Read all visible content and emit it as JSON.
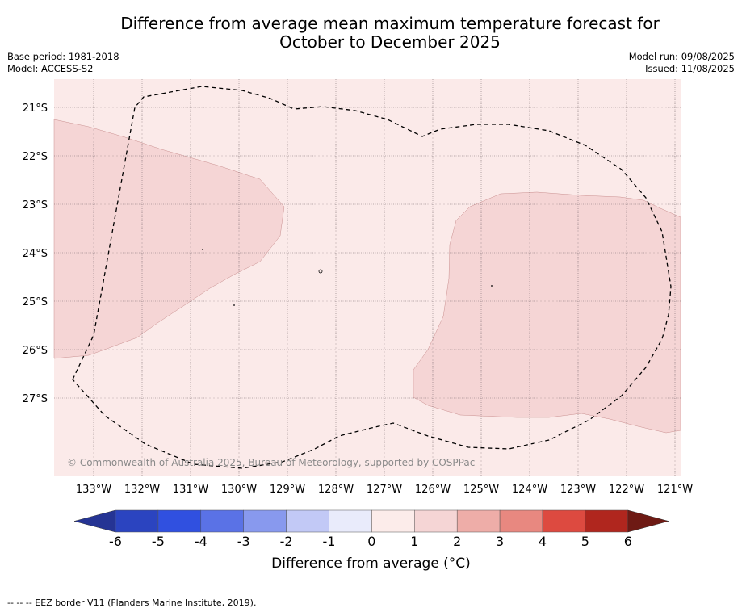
{
  "title_line1": "Difference from average mean maximum temperature forecast for",
  "title_line2": "October to December 2025",
  "base_period": "Base period: 1981-2018",
  "model": "Model: ACCESS-S2",
  "model_run": "Model run: 09/08/2025",
  "issued": "Issued: 11/08/2025",
  "copyright": "© Commonwealth of Australia 2025, Bureau of Meteorology, supported by COSPPac",
  "lat_labels": [
    "21°S",
    "22°S",
    "23°S",
    "24°S",
    "25°S",
    "26°S",
    "27°S"
  ],
  "lon_labels": [
    "133°W",
    "132°W",
    "131°W",
    "130°W",
    "129°W",
    "128°W",
    "127°W",
    "126°W",
    "125°W",
    "124°W",
    "123°W",
    "122°W",
    "121°W"
  ],
  "colorbar": {
    "ticks": [
      "-6",
      "-5",
      "-4",
      "-3",
      "-2",
      "-1",
      "0",
      "1",
      "2",
      "3",
      "4",
      "5",
      "6"
    ],
    "colors": [
      "#253494",
      "#2b44c0",
      "#3050e0",
      "#5a72e6",
      "#8899ee",
      "#c2c9f6",
      "#e9ebfb",
      "#fcecea",
      "#f5d5d5",
      "#eeada8",
      "#e88880",
      "#dd4a40",
      "#b0261e",
      "#6e1a14"
    ],
    "label": "Difference from average (°C)"
  },
  "map_colors": {
    "background": "#fbeae9",
    "warm_region": "#f5d5d5"
  },
  "footnote": "--  --  -- EEZ border V11 (Flanders Marine Institute, 2019)."
}
